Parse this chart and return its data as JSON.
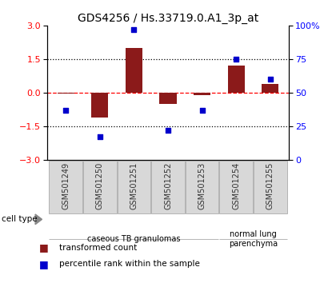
{
  "title": "GDS4256 / Hs.33719.0.A1_3p_at",
  "samples": [
    "GSM501249",
    "GSM501250",
    "GSM501251",
    "GSM501252",
    "GSM501253",
    "GSM501254",
    "GSM501255"
  ],
  "red_bars": [
    -0.05,
    -1.1,
    2.0,
    -0.5,
    -0.1,
    1.2,
    0.4
  ],
  "blue_pct": [
    37,
    17,
    97,
    22,
    37,
    75,
    60
  ],
  "ylim": [
    -3,
    3
  ],
  "yticks_left": [
    -3,
    -1.5,
    0,
    1.5,
    3
  ],
  "yticks_right": [
    0,
    25,
    50,
    75,
    100
  ],
  "hlines": [
    1.5,
    0,
    -1.5
  ],
  "hline_styles": [
    "dotted",
    "dashed",
    "dotted"
  ],
  "hline_colors": [
    "black",
    "red",
    "black"
  ],
  "bar_color": "#8B1A1A",
  "dot_color": "#0000CC",
  "bar_width": 0.5,
  "cell_type_groups": [
    {
      "label": "caseous TB granulomas",
      "span": [
        0,
        4
      ],
      "color": "#c8f0c8"
    },
    {
      "label": "normal lung\nparenchyma",
      "span": [
        5,
        6
      ],
      "color": "#90e090"
    }
  ],
  "legend_items": [
    {
      "label": "transformed count",
      "color": "#8B1A1A"
    },
    {
      "label": "percentile rank within the sample",
      "color": "#0000CC"
    }
  ],
  "cell_type_label": "cell type",
  "title_fontsize": 10,
  "tick_fontsize": 8,
  "label_fontsize": 7
}
